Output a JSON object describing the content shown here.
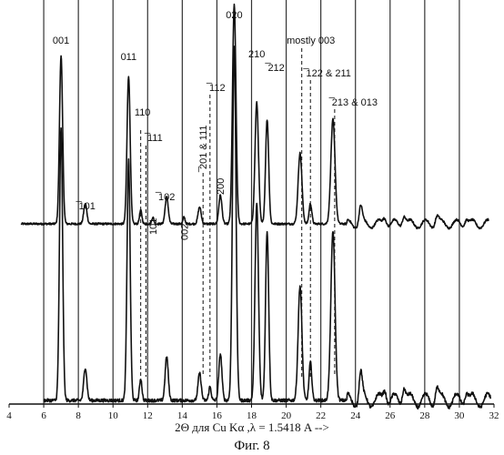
{
  "chart_data": {
    "type": "line",
    "xlabel": "2Θ для Cu Kα    ,λ = 1.5418 A  -->",
    "caption": "Фиг. 8",
    "xlim": [
      4,
      32
    ],
    "x_ticks": [
      4,
      6,
      8,
      10,
      12,
      14,
      16,
      18,
      20,
      22,
      24,
      26,
      28,
      30,
      32
    ],
    "grid": true,
    "series": [
      {
        "peaks": [
          {
            "x": 7.0,
            "h": 1.0,
            "w": 0.09
          },
          {
            "x": 8.4,
            "h": 0.12,
            "w": 0.09
          },
          {
            "x": 10.9,
            "h": 0.88,
            "w": 0.09
          },
          {
            "x": 11.6,
            "h": 0.08,
            "w": 0.07
          },
          {
            "x": 12.3,
            "h": 0.04,
            "w": 0.06
          },
          {
            "x": 13.1,
            "h": 0.16,
            "w": 0.09
          },
          {
            "x": 14.1,
            "h": 0.04,
            "w": 0.06
          },
          {
            "x": 15.0,
            "h": 0.1,
            "w": 0.09
          },
          {
            "x": 16.2,
            "h": 0.17,
            "w": 0.09
          },
          {
            "x": 17.0,
            "h": 1.3,
            "w": 0.1
          },
          {
            "x": 18.3,
            "h": 0.72,
            "w": 0.1
          },
          {
            "x": 18.9,
            "h": 0.62,
            "w": 0.09
          },
          {
            "x": 20.8,
            "h": 0.42,
            "w": 0.11
          },
          {
            "x": 21.4,
            "h": 0.12,
            "w": 0.08
          },
          {
            "x": 22.7,
            "h": 0.62,
            "w": 0.12
          },
          {
            "x": 24.3,
            "h": 0.1,
            "w": 0.09
          },
          {
            "x": 25.7,
            "h": 0.05,
            "w": 0.1
          },
          {
            "x": 26.8,
            "h": 0.06,
            "w": 0.1
          },
          {
            "x": 28.7,
            "h": 0.05,
            "w": 0.1
          },
          {
            "x": 30.4,
            "h": 0.04,
            "w": 0.1
          }
        ]
      },
      {
        "peaks": [
          {
            "x": 7.0,
            "h": 1.0,
            "w": 0.09
          },
          {
            "x": 8.4,
            "h": 0.12,
            "w": 0.09
          },
          {
            "x": 10.9,
            "h": 0.88,
            "w": 0.09
          },
          {
            "x": 11.6,
            "h": 0.08,
            "w": 0.07
          },
          {
            "x": 13.1,
            "h": 0.16,
            "w": 0.09
          },
          {
            "x": 15.0,
            "h": 0.1,
            "w": 0.09
          },
          {
            "x": 15.6,
            "h": 0.05,
            "w": 0.07
          },
          {
            "x": 16.2,
            "h": 0.17,
            "w": 0.09
          },
          {
            "x": 17.0,
            "h": 1.3,
            "w": 0.1
          },
          {
            "x": 18.3,
            "h": 0.72,
            "w": 0.1
          },
          {
            "x": 18.9,
            "h": 0.62,
            "w": 0.09
          },
          {
            "x": 20.8,
            "h": 0.42,
            "w": 0.11
          },
          {
            "x": 21.4,
            "h": 0.14,
            "w": 0.08
          },
          {
            "x": 22.7,
            "h": 0.62,
            "w": 0.12
          },
          {
            "x": 24.3,
            "h": 0.1,
            "w": 0.09
          },
          {
            "x": 25.7,
            "h": 0.05,
            "w": 0.1
          },
          {
            "x": 26.8,
            "h": 0.06,
            "w": 0.1
          },
          {
            "x": 28.7,
            "h": 0.05,
            "w": 0.1
          },
          {
            "x": 30.4,
            "h": 0.04,
            "w": 0.1
          }
        ]
      }
    ],
    "annotations": [
      {
        "text": "001",
        "x": 7.0
      },
      {
        "text": "̅101",
        "x": 8.4
      },
      {
        "text": "011",
        "x": 10.9
      },
      {
        "text": "110",
        "x": 11.6
      },
      {
        "text": "̅111",
        "x": 11.9
      },
      {
        "text": "101",
        "x": 12.3
      },
      {
        "text": "̅102",
        "x": 13.1
      },
      {
        "text": "002",
        "x": 14.1
      },
      {
        "text": "̅201 & 111",
        "x": 15.2
      },
      {
        "text": "̅112",
        "x": 15.6
      },
      {
        "text": "200",
        "x": 16.2
      },
      {
        "text": "020",
        "x": 17.0
      },
      {
        "text": "210",
        "x": 18.3
      },
      {
        "text": "̅212",
        "x": 18.9
      },
      {
        "text": "mostly 003",
        "x": 20.9
      },
      {
        "text": "̅122 & 211",
        "x": 21.4
      },
      {
        "text": "̅213 & 013",
        "x": 22.8
      }
    ]
  }
}
